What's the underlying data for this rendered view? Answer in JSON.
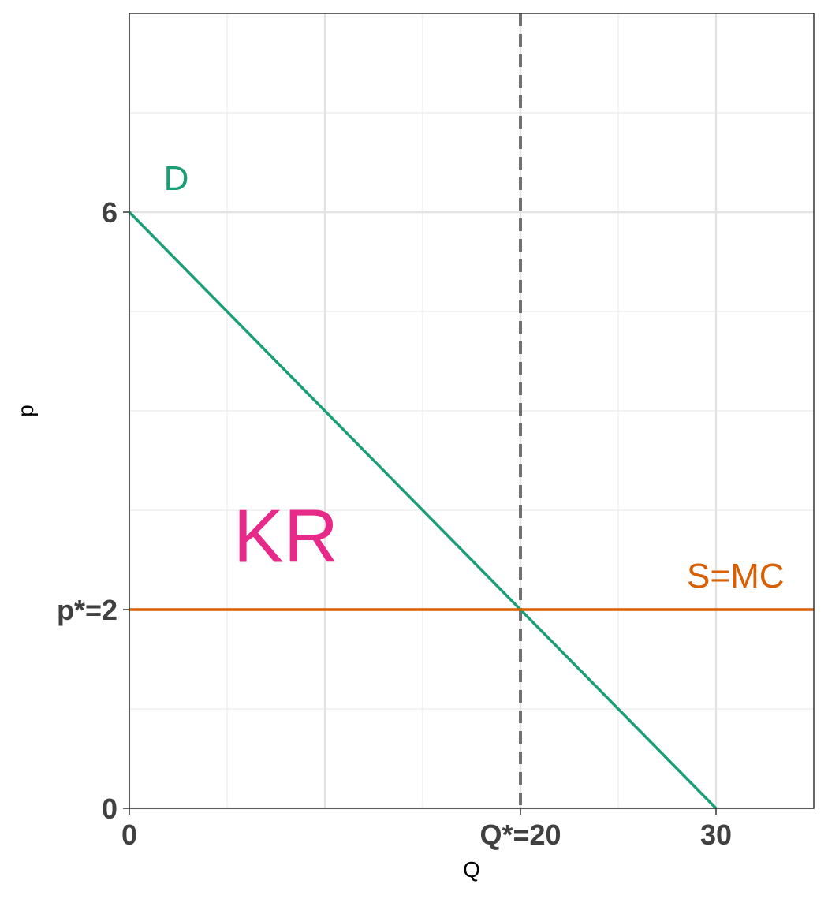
{
  "chart_data": {
    "type": "line",
    "xlabel": "Q",
    "ylabel": "p",
    "xlim": [
      0,
      35
    ],
    "ylim": [
      0,
      8
    ],
    "x_ticks": [
      {
        "value": 0,
        "label": "0"
      },
      {
        "value": 20,
        "label": "Q*=20"
      },
      {
        "value": 30,
        "label": "30"
      }
    ],
    "y_ticks": [
      {
        "value": 0,
        "label": "0"
      },
      {
        "value": 2,
        "label": "p*=2"
      },
      {
        "value": 6,
        "label": "6"
      }
    ],
    "grid_major_x": [
      0,
      10,
      20,
      30
    ],
    "grid_minor_x": [
      5,
      15,
      25
    ],
    "grid_major_y": [
      0,
      2,
      6
    ],
    "grid_minor_y": [
      1,
      3,
      4,
      5,
      7
    ],
    "series": [
      {
        "name": "D",
        "x": [
          0,
          30
        ],
        "y": [
          6,
          0
        ],
        "color": "#1b9e77"
      },
      {
        "name": "S=MC",
        "x": [
          0,
          35
        ],
        "y": [
          2,
          2
        ],
        "color": "#d95f02"
      }
    ],
    "reference_lines": [
      {
        "orientation": "vertical",
        "x": 20,
        "style": "dashed",
        "color": "#707070"
      }
    ],
    "annotations": [
      {
        "text": "D",
        "x": 2.4,
        "y": 6.35,
        "color": "#1b9e77",
        "size": "medium"
      },
      {
        "text": "S=MC",
        "x": 31,
        "y": 2.35,
        "color": "#d95f02",
        "size": "medium"
      },
      {
        "text": "KR",
        "x": 8,
        "y": 2.75,
        "color": "#e7298a",
        "size": "large"
      }
    ]
  }
}
